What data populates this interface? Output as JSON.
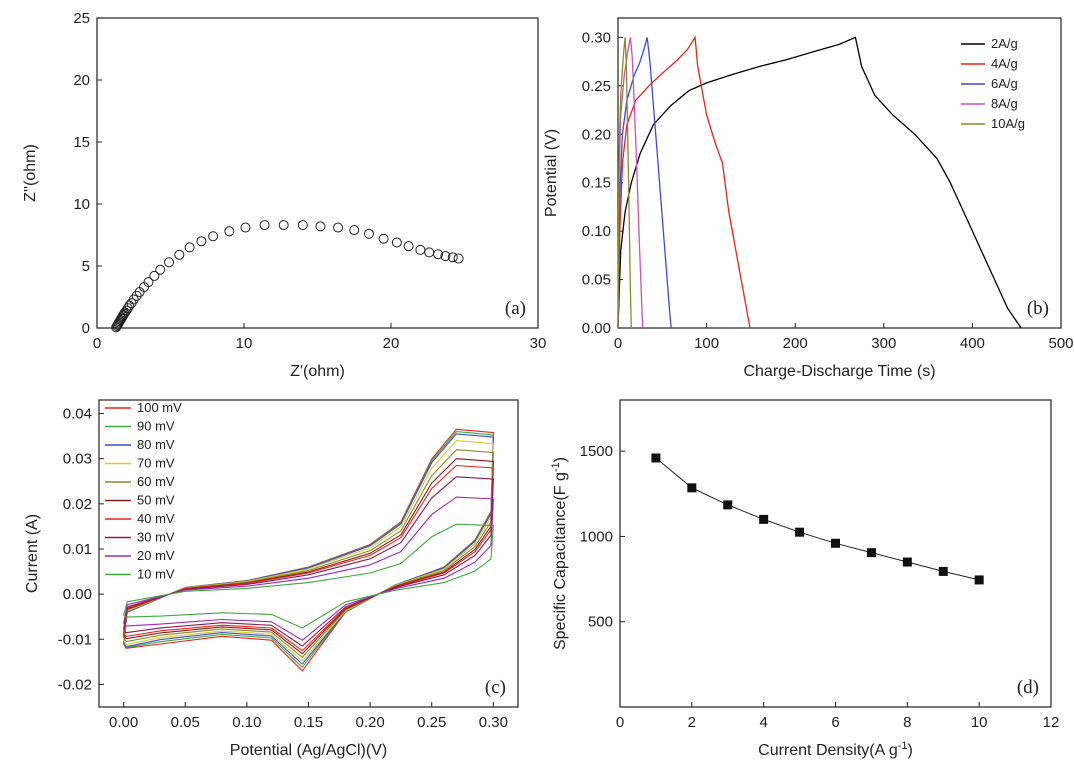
{
  "chart_data": [
    {
      "panel": "(a)",
      "type": "scatter",
      "xlabel": "Z'(ohm)",
      "ylabel": "Z''(ohm)",
      "xlim": [
        0,
        30
      ],
      "ylim": [
        0,
        25
      ],
      "xticks": [
        0,
        10,
        20,
        30
      ],
      "yticks": [
        0,
        5,
        10,
        15,
        20,
        25
      ],
      "xtick_labels": [
        "0",
        "10",
        "20",
        "30"
      ],
      "ytick_labels": [
        "0",
        "5",
        "10",
        "15",
        "20",
        "25"
      ],
      "marker": "open-circle",
      "series": [
        {
          "x": [
            1.3,
            1.35,
            1.4,
            1.45,
            1.5,
            1.55,
            1.6,
            1.65,
            1.7,
            1.75,
            1.8,
            1.85,
            1.9,
            2.0,
            2.1,
            2.2,
            2.35,
            2.5,
            2.7,
            2.9,
            3.2,
            3.5,
            3.9,
            4.3,
            4.9,
            5.6,
            6.3,
            7.1,
            7.9,
            9.0,
            10.1,
            11.4,
            12.7,
            14.0,
            15.2,
            16.4,
            17.5,
            18.5,
            19.5,
            20.4,
            21.2,
            22.0,
            22.6,
            23.2,
            23.7,
            24.2,
            24.6
          ],
          "y": [
            0.05,
            0.15,
            0.25,
            0.35,
            0.45,
            0.55,
            0.65,
            0.75,
            0.85,
            0.95,
            1.05,
            1.15,
            1.25,
            1.4,
            1.6,
            1.8,
            2.0,
            2.3,
            2.6,
            2.9,
            3.3,
            3.7,
            4.2,
            4.7,
            5.3,
            5.9,
            6.5,
            7.0,
            7.4,
            7.8,
            8.1,
            8.3,
            8.3,
            8.3,
            8.2,
            8.1,
            7.9,
            7.6,
            7.2,
            6.9,
            6.6,
            6.3,
            6.1,
            5.95,
            5.8,
            5.7,
            5.6
          ]
        }
      ],
      "label_color": "#222222"
    },
    {
      "panel": "(b)",
      "type": "line",
      "xlabel": "Charge-Discharge Time (s)",
      "ylabel": "Potential (V)",
      "xlim": [
        0,
        500
      ],
      "ylim": [
        0,
        0.32
      ],
      "xticks": [
        0,
        100,
        200,
        300,
        400,
        500
      ],
      "yticks": [
        0,
        0.05,
        0.1,
        0.15,
        0.2,
        0.25,
        0.3
      ],
      "xtick_labels": [
        "0",
        "100",
        "200",
        "300",
        "400",
        "500"
      ],
      "ytick_labels": [
        "0.00",
        "0.05",
        "0.10",
        "0.15",
        "0.20",
        "0.25",
        "0.30"
      ],
      "legend_position": "top-right",
      "series": [
        {
          "name": "2A/g",
          "color": "#000000",
          "x": [
            0,
            3,
            8,
            15,
            25,
            40,
            60,
            80,
            100,
            130,
            160,
            190,
            220,
            250,
            268,
            275,
            290,
            310,
            335,
            360,
            375,
            395,
            420,
            440,
            455
          ],
          "y": [
            0.0,
            0.08,
            0.12,
            0.15,
            0.18,
            0.21,
            0.23,
            0.245,
            0.253,
            0.262,
            0.27,
            0.277,
            0.285,
            0.293,
            0.3,
            0.27,
            0.24,
            0.22,
            0.2,
            0.175,
            0.15,
            0.11,
            0.06,
            0.02,
            0.0
          ]
        },
        {
          "name": "4A/g",
          "color": "#e8231b",
          "x": [
            0,
            2,
            5,
            10,
            20,
            35,
            50,
            65,
            78,
            87,
            90,
            100,
            110,
            118,
            125,
            135,
            145,
            149
          ],
          "y": [
            0.0,
            0.1,
            0.17,
            0.21,
            0.235,
            0.25,
            0.263,
            0.275,
            0.287,
            0.3,
            0.27,
            0.22,
            0.19,
            0.17,
            0.12,
            0.07,
            0.02,
            0.0
          ],
          "label_color": "#e8231b"
        },
        {
          "name": "6A/g",
          "color": "#3b4bd8",
          "x": [
            0,
            2,
            5,
            10,
            18,
            25,
            30,
            33,
            36,
            40,
            46,
            52,
            58,
            60
          ],
          "y": [
            0.0,
            0.14,
            0.2,
            0.235,
            0.26,
            0.275,
            0.29,
            0.3,
            0.275,
            0.23,
            0.16,
            0.09,
            0.02,
            0.0
          ]
        },
        {
          "name": "8A/g",
          "color": "#d04fb8",
          "x": [
            0,
            1,
            3,
            7,
            11,
            14,
            16,
            18,
            21,
            24,
            27,
            28
          ],
          "y": [
            0.0,
            0.15,
            0.22,
            0.26,
            0.285,
            0.3,
            0.28,
            0.24,
            0.17,
            0.09,
            0.02,
            0.0
          ],
          "label_color": "#d04fb8"
        },
        {
          "name": "10A/g",
          "color": "#8a8a2a",
          "x": [
            0,
            1,
            3,
            6,
            8,
            9.5,
            11,
            12.5,
            14,
            15
          ],
          "y": [
            0.0,
            0.17,
            0.24,
            0.28,
            0.3,
            0.27,
            0.2,
            0.12,
            0.04,
            0.0
          ],
          "label_color": "#8a8a2a"
        }
      ]
    },
    {
      "panel": "(c)",
      "type": "line",
      "xlabel": "Potential (Ag/AgCl)(V)",
      "ylabel": "Current (A)",
      "xlim": [
        -0.02,
        0.32
      ],
      "ylim": [
        -0.025,
        0.043
      ],
      "xticks": [
        0,
        0.05,
        0.1,
        0.15,
        0.2,
        0.25,
        0.3
      ],
      "yticks": [
        -0.02,
        -0.01,
        0,
        0.01,
        0.02,
        0.03,
        0.04
      ],
      "xtick_labels": [
        "0.00",
        "0.05",
        "0.10",
        "0.15",
        "0.20",
        "0.25",
        "0.30"
      ],
      "ytick_labels": [
        "-0.02",
        "-0.01",
        "0.00",
        "0.01",
        "0.02",
        "0.03",
        "0.04"
      ],
      "legend_position": "top-left",
      "series": [
        {
          "name": "100 mV",
          "color": "#e8231b",
          "peak_anodic": 0.0365,
          "peak_cathodic": -0.017
        },
        {
          "name": "90 mV",
          "color": "#3fa83f",
          "peak_anodic": 0.036,
          "peak_cathodic": -0.0162
        },
        {
          "name": "80 mV",
          "color": "#3b4bd8",
          "peak_anodic": 0.0355,
          "peak_cathodic": -0.0155
        },
        {
          "name": "70 mV",
          "color": "#d8cc2a",
          "peak_anodic": 0.034,
          "peak_cathodic": -0.0148
        },
        {
          "name": "60 mV",
          "color": "#8a8a2a",
          "peak_anodic": 0.032,
          "peak_cathodic": -0.014
        },
        {
          "name": "50 mV",
          "color": "#8b1a1a",
          "peak_anodic": 0.03,
          "peak_cathodic": -0.0132
        },
        {
          "name": "40 mV",
          "color": "#e8231b",
          "peak_anodic": 0.0285,
          "peak_cathodic": -0.0125
        },
        {
          "name": "30 mV",
          "color": "#8b1a4a",
          "peak_anodic": 0.026,
          "peak_cathodic": -0.0115
        },
        {
          "name": "20 mV",
          "color": "#9a2ab8",
          "peak_anodic": 0.0215,
          "peak_cathodic": -0.0102
        },
        {
          "name": "10 mV",
          "color": "#3fa83f",
          "peak_anodic": 0.0155,
          "peak_cathodic": -0.0075
        }
      ]
    },
    {
      "panel": "(d)",
      "type": "line",
      "xlabel": "Current Density(A g",
      "xlabel_sup": "-1",
      "xlabel_end": ")",
      "ylabel": "Specific Capacitance(F g",
      "ylabel_sup": "-1",
      "ylabel_end": ")",
      "xlim": [
        0,
        12
      ],
      "ylim": [
        0,
        1800
      ],
      "xticks": [
        0,
        2,
        4,
        6,
        8,
        10,
        12
      ],
      "yticks": [
        500,
        1000,
        1500
      ],
      "xtick_labels": [
        "0",
        "2",
        "4",
        "6",
        "8",
        "10",
        "12"
      ],
      "ytick_labels": [
        "500",
        "1000",
        "1500"
      ],
      "marker": "filled-square",
      "series": [
        {
          "x": [
            1,
            2,
            3,
            4,
            5,
            6,
            7,
            8,
            9,
            10
          ],
          "y": [
            1460,
            1285,
            1185,
            1100,
            1025,
            960,
            905,
            850,
            795,
            745
          ]
        }
      ]
    }
  ]
}
